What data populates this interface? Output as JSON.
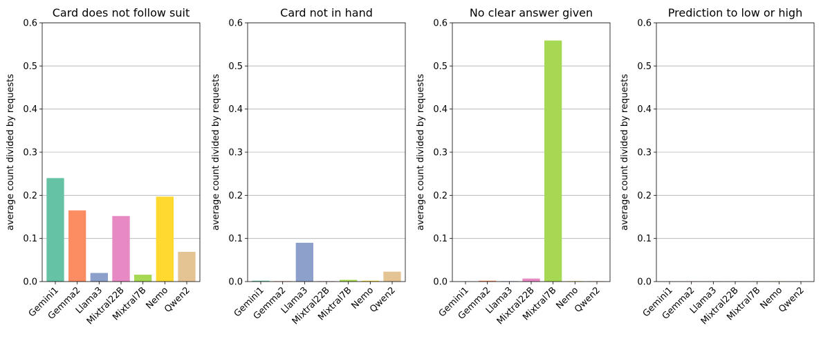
{
  "chart_data": [
    {
      "type": "bar",
      "title": "Card does not follow suit",
      "ylabel": "average count divided by requests",
      "categories": [
        "Gemini1",
        "Gemma2",
        "Llama3",
        "Mixtral22B",
        "Mixtral7B",
        "Nemo",
        "Qwen2"
      ],
      "values": [
        0.24,
        0.165,
        0.02,
        0.152,
        0.016,
        0.197,
        0.069
      ],
      "ylim": [
        0,
        0.6
      ],
      "yticks": [
        "0.0",
        "0.1",
        "0.2",
        "0.3",
        "0.4",
        "0.5",
        "0.6"
      ],
      "grid": "y"
    },
    {
      "type": "bar",
      "title": "Card not in hand",
      "ylabel": "average count divided by requests",
      "categories": [
        "Gemini1",
        "Gemma2",
        "Llama3",
        "Mixtral22B",
        "Mixtral7B",
        "Nemo",
        "Qwen2"
      ],
      "values": [
        0.002,
        0.001,
        0.09,
        0.001,
        0.004,
        0.002,
        0.023
      ],
      "ylim": [
        0,
        0.6
      ],
      "yticks": [
        "0.0",
        "0.1",
        "0.2",
        "0.3",
        "0.4",
        "0.5",
        "0.6"
      ],
      "grid": "y"
    },
    {
      "type": "bar",
      "title": "No clear answer given",
      "ylabel": "average count divided by requests",
      "categories": [
        "Gemini1",
        "Gemma2",
        "Llama3",
        "Mixtral22B",
        "Mixtral7B",
        "Nemo",
        "Qwen2"
      ],
      "values": [
        0.0005,
        0.002,
        0.001,
        0.007,
        0.559,
        0.001,
        0.001
      ],
      "ylim": [
        0,
        0.6
      ],
      "yticks": [
        "0.0",
        "0.1",
        "0.2",
        "0.3",
        "0.4",
        "0.5",
        "0.6"
      ],
      "grid": "y"
    },
    {
      "type": "bar",
      "title": "Prediction to low or high",
      "ylabel": "average count divided by requests",
      "categories": [
        "Gemini1",
        "Gemma2",
        "Llama3",
        "Mixtral22B",
        "Mixtral7B",
        "Nemo",
        "Qwen2"
      ],
      "values": [
        0.0005,
        0.0005,
        0.0005,
        0.0005,
        0.0005,
        0.0005,
        0.0005
      ],
      "ylim": [
        0,
        0.6
      ],
      "yticks": [
        "0.0",
        "0.1",
        "0.2",
        "0.3",
        "0.4",
        "0.5",
        "0.6"
      ],
      "grid": "y"
    }
  ],
  "colors": [
    "#66c2a5",
    "#fc8d62",
    "#8da0cb",
    "#e78ac3",
    "#a6d854",
    "#ffd92f",
    "#e5c494"
  ]
}
